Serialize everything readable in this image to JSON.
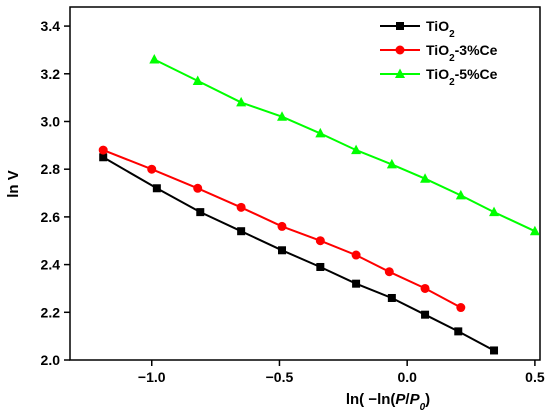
{
  "chart_data": {
    "type": "line",
    "title": "",
    "xlabel": {
      "pre": "ln( −ln(",
      "p": "P",
      "slash": "/",
      "p0": "P",
      "p0_sub": "0",
      "post": ")"
    },
    "ylabel": "ln V",
    "xlim": [
      -1.32,
      0.52
    ],
    "ylim": [
      2.0,
      3.48
    ],
    "xticks": [
      -1.0,
      -0.5,
      0.0,
      0.5
    ],
    "xtick_labels": [
      "−1.0",
      "−0.5",
      "0.0",
      "0.5"
    ],
    "yticks": [
      2.0,
      2.2,
      2.4,
      2.6,
      2.8,
      3.0,
      3.2,
      3.4
    ],
    "ytick_labels": [
      "2.0",
      "2.2",
      "2.4",
      "2.6",
      "2.8",
      "3.0",
      "3.2",
      "3.4"
    ],
    "grid": false,
    "legend_position": "top-right",
    "series": [
      {
        "name": "TiO",
        "name_sub": "2",
        "name_suffix": "",
        "color": "#000000",
        "marker": "square",
        "x": [
          -1.19,
          -0.98,
          -0.81,
          -0.65,
          -0.49,
          -0.34,
          -0.2,
          -0.06,
          0.07,
          0.2,
          0.34
        ],
        "y": [
          2.85,
          2.72,
          2.62,
          2.54,
          2.46,
          2.39,
          2.32,
          2.26,
          2.19,
          2.12,
          2.04
        ]
      },
      {
        "name": "TiO",
        "name_sub": "2",
        "name_suffix": "-3%Ce",
        "color": "#ff0000",
        "marker": "circle",
        "x": [
          -1.19,
          -1.0,
          -0.82,
          -0.65,
          -0.49,
          -0.34,
          -0.2,
          -0.07,
          0.07,
          0.21
        ],
        "y": [
          2.88,
          2.8,
          2.72,
          2.64,
          2.56,
          2.5,
          2.44,
          2.37,
          2.3,
          2.22
        ]
      },
      {
        "name": "TiO",
        "name_sub": "2",
        "name_suffix": "-5%Ce",
        "color": "#00ff00",
        "marker": "triangle",
        "x": [
          -0.99,
          -0.82,
          -0.65,
          -0.49,
          -0.34,
          -0.2,
          -0.06,
          0.07,
          0.21,
          0.34,
          0.5
        ],
        "y": [
          3.26,
          3.17,
          3.08,
          3.02,
          2.95,
          2.88,
          2.82,
          2.76,
          2.69,
          2.62,
          2.54
        ]
      }
    ]
  }
}
